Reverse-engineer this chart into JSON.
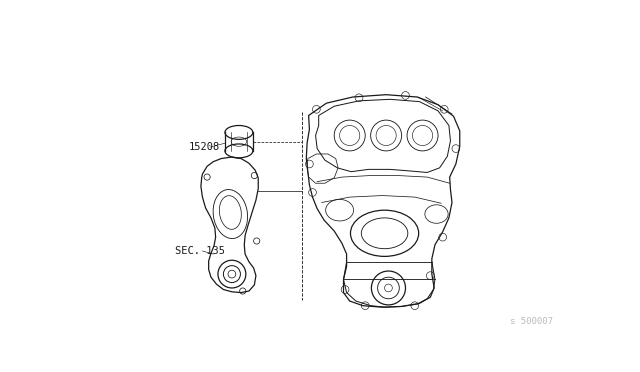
{
  "background_color": "#ffffff",
  "line_color": "#1a1a1a",
  "line_width": 0.9,
  "label_15208": "15208",
  "label_sec135": "SEC. 135",
  "watermark": "s 500007",
  "watermark_color": "#bbbbbb",
  "fig_width": 6.4,
  "fig_height": 3.72,
  "dpi": 100
}
